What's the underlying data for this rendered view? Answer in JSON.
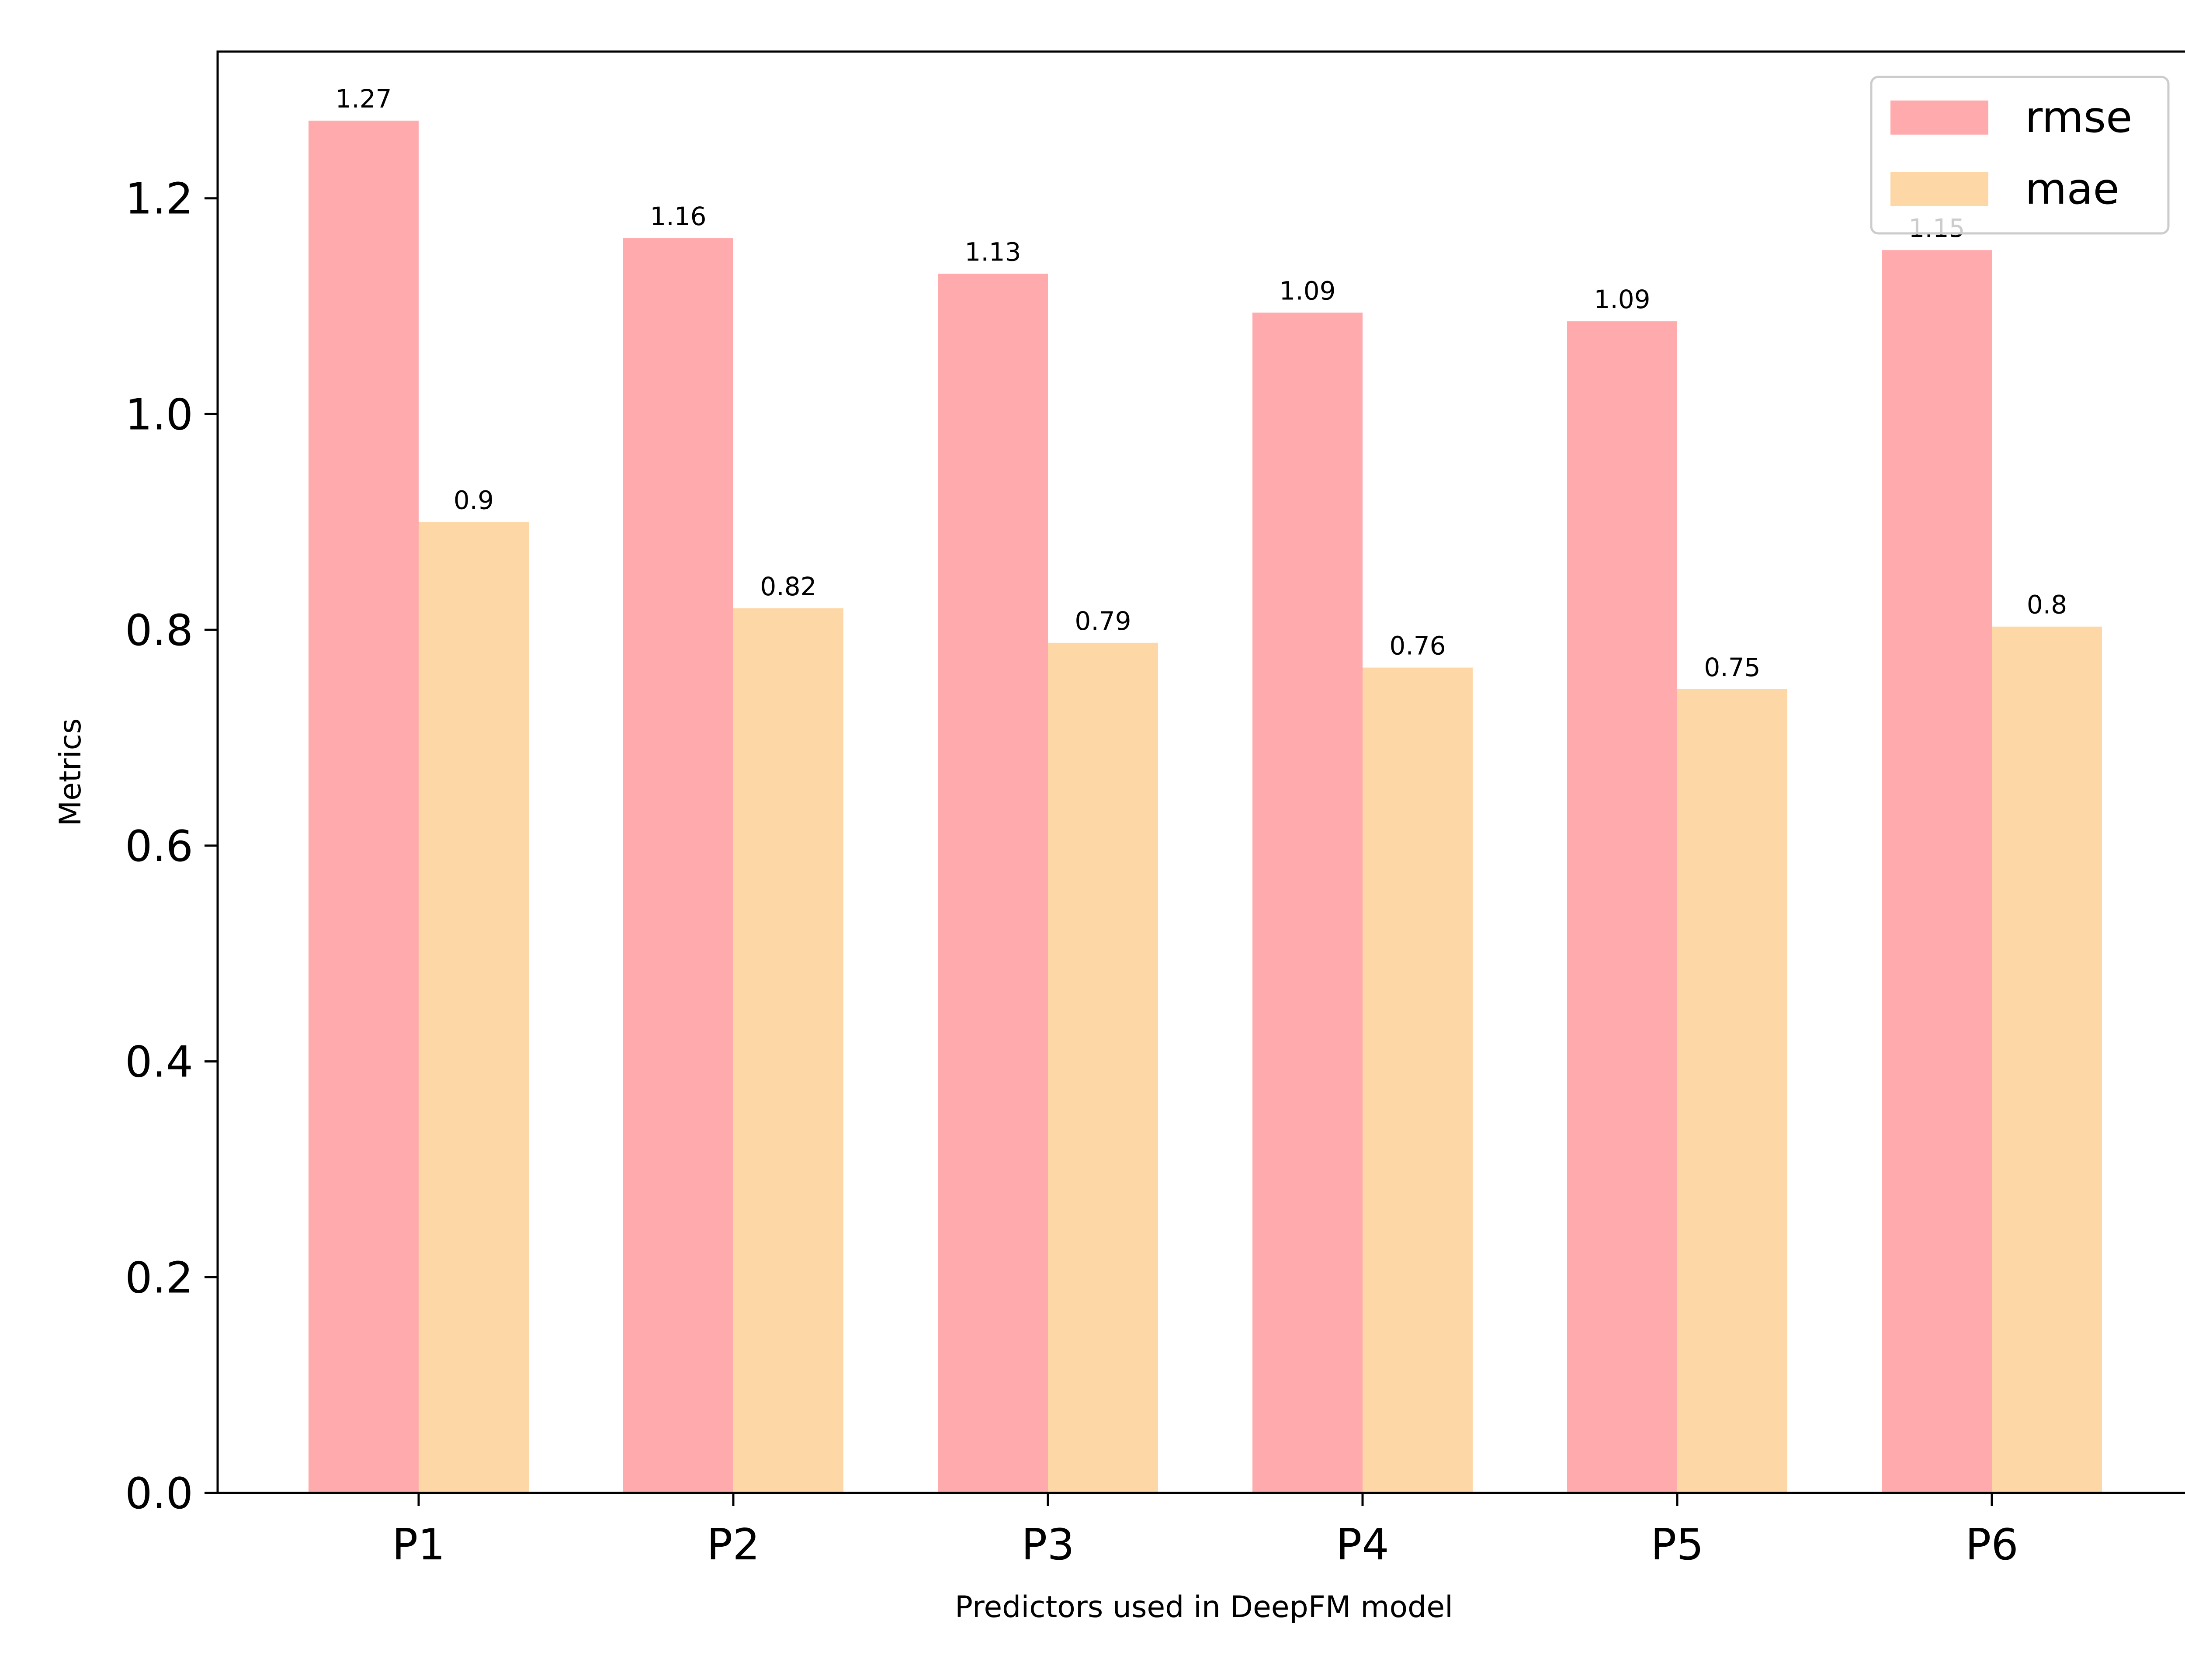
{
  "chart_data": {
    "type": "bar",
    "title": "",
    "xlabel": "Predictors used in DeepFM model",
    "ylabel": "Metrics",
    "categories": [
      "P1",
      "P2",
      "P3",
      "P4",
      "P5",
      "P6"
    ],
    "series": [
      {
        "name": "rmse",
        "values": [
          1.272,
          1.163,
          1.13,
          1.094,
          1.086,
          1.152
        ],
        "labels": [
          "1.27",
          "1.16",
          "1.13",
          "1.09",
          "1.09",
          "1.15"
        ],
        "color": "#ffabad"
      },
      {
        "name": "mae",
        "values": [
          0.9,
          0.82,
          0.788,
          0.765,
          0.745,
          0.803
        ],
        "labels": [
          "0.9",
          "0.82",
          "0.79",
          "0.76",
          "0.75",
          "0.8"
        ],
        "color": "#fed7a6"
      }
    ],
    "yticks": [
      "0.0",
      "0.2",
      "0.4",
      "0.6",
      "0.8",
      "1.0",
      "1.2"
    ],
    "ylim": [
      0,
      1.336
    ],
    "grid": false,
    "legend_position": "top-right"
  }
}
